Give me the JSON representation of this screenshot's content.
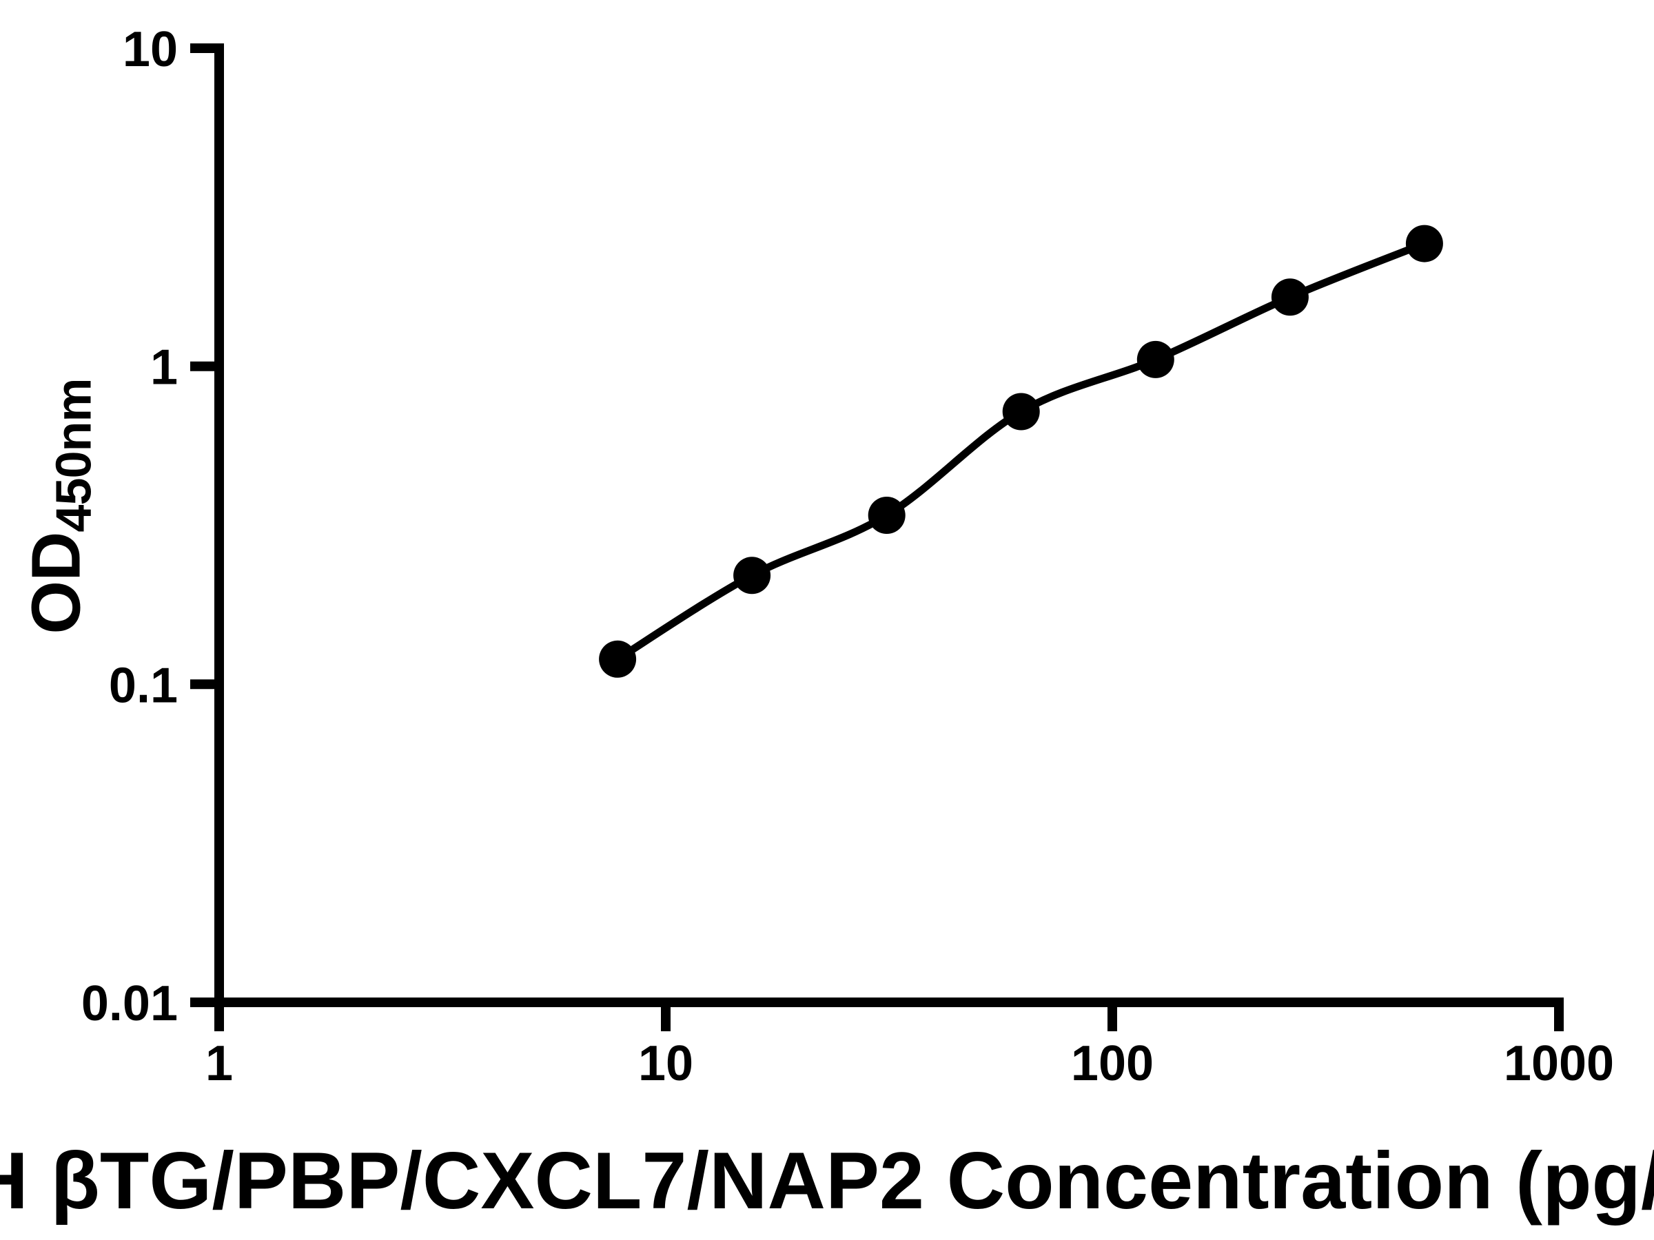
{
  "page": {
    "background_color": "#ffffff",
    "foreground_color": "#000000"
  },
  "chart_data": {
    "type": "scatter",
    "subtype": "elisa-standard-curve-with-fitted-line",
    "title": "",
    "x": [
      7.8,
      15.6,
      31.25,
      62.5,
      125,
      250,
      500
    ],
    "y": [
      0.12,
      0.22,
      0.34,
      0.72,
      1.05,
      1.65,
      2.43
    ],
    "x_scale": "log",
    "y_scale": "log",
    "xlim": [
      1,
      1000
    ],
    "ylim": [
      0.01,
      10
    ],
    "grid": false,
    "legend": "none",
    "marker_shape": "filled-circle",
    "marker_color": "#000000",
    "line_color": "#000000",
    "xlabel_visible": "H βTG/PBP/CXCL7/NAP2 Concentration (pg/",
    "ylabel_base": "OD",
    "ylabel_subscript": "450nm",
    "x_ticks": [
      {
        "value": 1,
        "label": "1"
      },
      {
        "value": 10,
        "label": "10"
      },
      {
        "value": 100,
        "label": "100"
      },
      {
        "value": 1000,
        "label": "1000"
      }
    ],
    "y_ticks": [
      {
        "value": 10,
        "label": "10"
      },
      {
        "value": 1,
        "label": "1"
      },
      {
        "value": 0.1,
        "label": "0.1"
      },
      {
        "value": 0.01,
        "label": "0.01"
      }
    ]
  }
}
